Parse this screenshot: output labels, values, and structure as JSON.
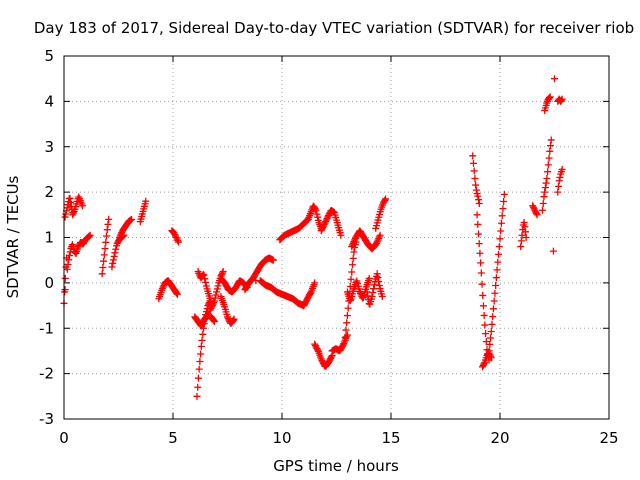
{
  "chart_data": {
    "type": "scatter",
    "title": "Day 183 of 2017, Sidereal Day-to-day VTEC variation (SDTVAR) for receiver riob",
    "xlabel": "GPS time / hours",
    "ylabel": "SDTVAR / TECUs",
    "xlim": [
      0,
      25
    ],
    "ylim": [
      -3,
      5
    ],
    "xticks": [
      0,
      5,
      10,
      15,
      20,
      25
    ],
    "yticks": [
      -3,
      -2,
      -1,
      0,
      1,
      2,
      3,
      4,
      5
    ],
    "grid": true,
    "marker": "+",
    "color": "#ff0000",
    "series": [
      {
        "name": "SDTVAR",
        "runs": [
          {
            "x0": 0.0,
            "x1": 0.12,
            "y": [
              -0.45,
              -0.2,
              0.1,
              0.35,
              0.55
            ]
          },
          {
            "x0": 0.05,
            "x1": 0.4,
            "y": [
              1.45,
              1.6,
              1.75,
              1.9,
              1.7,
              1.55
            ]
          },
          {
            "x0": 0.15,
            "x1": 0.55,
            "y": [
              0.3,
              0.55,
              0.75,
              0.85,
              0.7,
              0.65
            ]
          },
          {
            "x0": 0.4,
            "x1": 0.85,
            "y": [
              1.5,
              1.6,
              1.75,
              1.9,
              1.8,
              1.7
            ]
          },
          {
            "x0": 0.55,
            "x1": 1.2,
            "y": [
              0.65,
              0.8,
              0.9,
              0.85,
              0.95,
              1.0,
              1.05
            ]
          },
          {
            "x0": 1.75,
            "x1": 2.05,
            "y": [
              0.2,
              0.45,
              0.7,
              0.95,
              1.2,
              1.4
            ]
          },
          {
            "x0": 2.2,
            "x1": 2.75,
            "y": [
              0.35,
              0.6,
              0.85,
              0.95,
              1.0,
              1.05
            ]
          },
          {
            "x0": 2.55,
            "x1": 3.1,
            "y": [
              1.0,
              1.15,
              1.25,
              1.35,
              1.4
            ]
          },
          {
            "x0": 3.5,
            "x1": 3.75,
            "y": [
              1.35,
              1.5,
              1.65,
              1.8
            ]
          },
          {
            "x0": 4.35,
            "x1": 5.2,
            "y": [
              -0.35,
              -0.15,
              0.0,
              0.05,
              -0.05,
              -0.15,
              -0.25
            ]
          },
          {
            "x0": 4.95,
            "x1": 5.25,
            "y": [
              1.15,
              1.1,
              1.0,
              0.9
            ]
          },
          {
            "x0": 6.1,
            "x1": 6.7,
            "y": [
              -2.5,
              -1.9,
              -1.4,
              -1.0,
              -0.7,
              -0.5,
              -0.4
            ]
          },
          {
            "x0": 6.0,
            "x1": 6.9,
            "y": [
              -0.75,
              -0.85,
              -0.95,
              -0.8,
              -0.7,
              -0.75,
              -0.85
            ]
          },
          {
            "x0": 6.15,
            "x1": 6.8,
            "y": [
              0.25,
              0.1,
              0.2,
              -0.1,
              -0.3,
              -0.5
            ]
          },
          {
            "x0": 6.7,
            "x1": 7.3,
            "y": [
              -0.6,
              -0.5,
              -0.4,
              -0.2,
              0.0,
              0.15,
              0.25
            ]
          },
          {
            "x0": 7.2,
            "x1": 7.8,
            "y": [
              -0.3,
              -0.5,
              -0.75,
              -0.9,
              -0.8
            ]
          },
          {
            "x0": 7.2,
            "x1": 8.4,
            "y": [
              0.1,
              0.0,
              -0.15,
              -0.2,
              -0.1,
              0.05,
              0.0,
              -0.1
            ]
          },
          {
            "x0": 8.3,
            "x1": 9.6,
            "y": [
              -0.15,
              0.0,
              0.1,
              0.25,
              0.4,
              0.5,
              0.55,
              0.5
            ]
          },
          {
            "x0": 9.0,
            "x1": 11.0,
            "y": [
              0.05,
              -0.05,
              -0.1,
              -0.2,
              -0.25,
              -0.3,
              -0.35,
              -0.45,
              -0.5
            ]
          },
          {
            "x0": 11.0,
            "x1": 11.5,
            "y": [
              -0.5,
              -0.35,
              -0.2,
              0.0
            ]
          },
          {
            "x0": 9.9,
            "x1": 11.2,
            "y": [
              0.95,
              1.05,
              1.1,
              1.15,
              1.2,
              1.3,
              1.4
            ]
          },
          {
            "x0": 11.2,
            "x1": 11.8,
            "y": [
              1.4,
              1.55,
              1.7,
              1.6,
              1.35,
              1.2
            ]
          },
          {
            "x0": 11.8,
            "x1": 12.7,
            "y": [
              1.15,
              1.3,
              1.45,
              1.6,
              1.55,
              1.3,
              1.05
            ]
          },
          {
            "x0": 11.5,
            "x1": 12.3,
            "y": [
              -1.35,
              -1.5,
              -1.7,
              -1.85,
              -1.75,
              -1.6
            ]
          },
          {
            "x0": 12.3,
            "x1": 13.0,
            "y": [
              -1.5,
              -1.45,
              -1.5,
              -1.35,
              -1.15
            ]
          },
          {
            "x0": 12.9,
            "x1": 13.4,
            "y": [
              -1.2,
              -0.8,
              -0.4,
              0.0,
              0.4,
              0.75,
              0.9
            ]
          },
          {
            "x0": 13.0,
            "x1": 14.0,
            "y": [
              -0.2,
              -0.4,
              -0.15,
              0.05,
              -0.2,
              -0.35,
              -0.1,
              0.1
            ]
          },
          {
            "x0": 13.2,
            "x1": 14.5,
            "y": [
              0.8,
              1.0,
              1.15,
              1.0,
              0.85,
              0.75,
              0.85,
              1.05
            ]
          },
          {
            "x0": 13.9,
            "x1": 14.6,
            "y": [
              -0.2,
              -0.5,
              -0.3,
              0.0,
              0.2,
              -0.1,
              -0.3
            ]
          },
          {
            "x0": 14.3,
            "x1": 14.75,
            "y": [
              1.2,
              1.4,
              1.6,
              1.75,
              1.85
            ]
          },
          {
            "x0": 18.75,
            "x1": 19.05,
            "y": [
              2.8,
              2.5,
              2.2,
              2.0,
              1.9,
              1.75
            ]
          },
          {
            "x0": 18.95,
            "x1": 19.5,
            "y": [
              1.5,
              0.9,
              0.3,
              -0.4,
              -1.0,
              -1.5,
              -1.7
            ]
          },
          {
            "x0": 19.2,
            "x1": 19.6,
            "y": [
              -1.85,
              -1.75,
              -1.6,
              -1.55,
              -1.65
            ]
          },
          {
            "x0": 19.5,
            "x1": 20.2,
            "y": [
              -1.5,
              -1.0,
              -0.4,
              0.2,
              0.8,
              1.4,
              1.95
            ]
          },
          {
            "x0": 20.95,
            "x1": 21.2,
            "y": [
              0.8,
              1.0,
              1.2,
              1.35,
              1.2,
              1.0
            ]
          },
          {
            "x0": 21.5,
            "x1": 21.7,
            "y": [
              1.7,
              1.6,
              1.5
            ]
          },
          {
            "x0": 21.95,
            "x1": 22.35,
            "y": [
              1.6,
              1.9,
              2.1,
              2.3,
              2.6,
              2.9,
              3.15
            ]
          },
          {
            "x0": 22.05,
            "x1": 22.3,
            "y": [
              3.8,
              3.95,
              4.05,
              4.1
            ]
          },
          {
            "x0": 22.65,
            "x1": 22.85,
            "y": [
              4.0,
              4.05,
              4.0,
              4.05
            ]
          },
          {
            "x0": 22.65,
            "x1": 22.85,
            "y": [
              2.0,
              2.25,
              2.4,
              2.5
            ]
          }
        ],
        "points": [
          [
            22.5,
            4.5
          ],
          [
            22.45,
            0.7
          ],
          [
            0.05,
            -0.15
          ],
          [
            8.8,
            0.05
          ]
        ]
      }
    ]
  }
}
